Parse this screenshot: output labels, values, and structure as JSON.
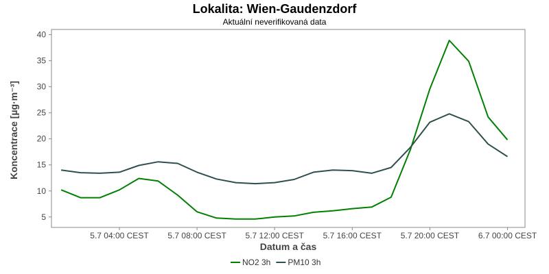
{
  "chart_data": {
    "type": "line",
    "title": "Lokalita: Wien-Gaudenzdorf",
    "subtitle": "Aktuální neverifikovaná data",
    "xlabel": "Datum a čas",
    "ylabel": "Koncentrace [µg·m⁻³]",
    "ylim": [
      3,
      41
    ],
    "yticks": [
      5,
      10,
      15,
      20,
      25,
      30,
      35,
      40
    ],
    "xlim": [
      0.5,
      24.9
    ],
    "xticks": [
      {
        "x": 4,
        "label": "5.7 04:00 CEST"
      },
      {
        "x": 8,
        "label": "5.7 08:00 CEST"
      },
      {
        "x": 12,
        "label": "5.7 12:00 CEST"
      },
      {
        "x": 16,
        "label": "5.7 16:00 CEST"
      },
      {
        "x": 20,
        "label": "5.7 20:00 CEST"
      },
      {
        "x": 24,
        "label": "6.7 00:00 CEST"
      }
    ],
    "x": [
      1,
      2,
      3,
      4,
      5,
      6,
      7,
      8,
      9,
      10,
      11,
      12,
      13,
      14,
      15,
      16,
      17,
      18,
      19,
      20,
      21,
      22,
      23,
      24
    ],
    "grid": true,
    "legend_position": "bottom",
    "series": [
      {
        "name": "NO2 3h",
        "color": "#008000",
        "values": [
          10.2,
          8.7,
          8.7,
          10.2,
          12.4,
          11.9,
          9.2,
          6.0,
          4.8,
          4.6,
          4.6,
          5.0,
          5.2,
          5.9,
          6.2,
          6.6,
          6.9,
          8.8,
          18.0,
          29.6,
          38.9,
          34.9,
          24.2,
          19.8
        ]
      },
      {
        "name": "PM10 3h",
        "color": "#2f4f4f",
        "values": [
          14.0,
          13.5,
          13.4,
          13.6,
          14.9,
          15.6,
          15.3,
          13.6,
          12.3,
          11.6,
          11.4,
          11.6,
          12.2,
          13.6,
          14.0,
          13.9,
          13.4,
          14.5,
          18.4,
          23.2,
          24.8,
          23.3,
          19.0,
          16.6
        ]
      }
    ]
  }
}
